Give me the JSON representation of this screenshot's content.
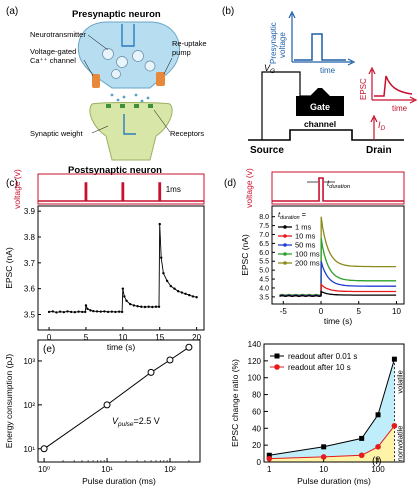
{
  "panels": {
    "a": {
      "letter": "(a)",
      "presynaptic": "Presynaptic neuron",
      "postsynaptic": "Postsynaptic neuron",
      "neurotransmitter": "Neurotransmitter",
      "vg_channel_1": "Voltage-gated",
      "vg_channel_2": "Ca⁺⁺ channel",
      "reuptake_1": "Re-uptake",
      "reuptake_2": "pump",
      "synaptic_weight": "Synaptic weight",
      "receptors": "Receptors"
    },
    "b": {
      "letter": "(b)",
      "pre_voltage_1": "Presynaptic",
      "pre_voltage_2": "voltage",
      "time": "time",
      "vg": "V",
      "vg_sub": "G",
      "epsc": "EPSC",
      "gate": "Gate",
      "channel": "channel",
      "source": "Source",
      "drain": "Drain",
      "id": "I",
      "id_sub": "D"
    },
    "colors": {
      "blue": "#1f5fa8",
      "red": "#c8102e",
      "cyan": "#bfeefa",
      "yellow": "#fff3a8"
    }
  },
  "chart_data": [
    {
      "panel": "c",
      "letter": "(c)",
      "type": "line",
      "top_ylabel": "voltage (v)",
      "pulse_label": "1ms",
      "pulse_times": [
        5,
        10,
        15
      ],
      "ylabel": "EPSC (nA)",
      "xlabel": "time (s)",
      "xlim": [
        -1.5,
        21
      ],
      "ylim": [
        3.44,
        3.92
      ],
      "xticks": [
        0,
        5,
        10,
        15,
        20
      ],
      "yticks": [
        3.5,
        3.6,
        3.7,
        3.8,
        3.9
      ],
      "series": [
        {
          "color": "#000000",
          "x": [
            0,
            0.5,
            1,
            1.5,
            2,
            2.5,
            3,
            3.5,
            4,
            4.5,
            4.9,
            5.0,
            5.2,
            5.6,
            6,
            6.5,
            7,
            7.5,
            8,
            8.5,
            9,
            9.5,
            9.9,
            10.0,
            10.2,
            10.5,
            11,
            11.5,
            12,
            12.5,
            13,
            13.5,
            14,
            14.5,
            14.9,
            15.0,
            15.2,
            15.5,
            16,
            16.5,
            17,
            17.5,
            18,
            18.5,
            19,
            19.5,
            20
          ],
          "y": [
            3.51,
            3.512,
            3.508,
            3.511,
            3.509,
            3.512,
            3.51,
            3.509,
            3.511,
            3.51,
            3.51,
            3.535,
            3.522,
            3.516,
            3.513,
            3.512,
            3.511,
            3.512,
            3.51,
            3.511,
            3.51,
            3.511,
            3.51,
            3.6,
            3.57,
            3.553,
            3.54,
            3.535,
            3.532,
            3.53,
            3.529,
            3.53,
            3.529,
            3.53,
            3.53,
            3.85,
            3.72,
            3.66,
            3.63,
            3.61,
            3.6,
            3.59,
            3.585,
            3.58,
            3.575,
            3.57,
            3.567
          ]
        }
      ]
    },
    {
      "panel": "d",
      "letter": "(d)",
      "type": "line",
      "top_ylabel": "voltage (v)",
      "pulse_label": "t",
      "pulse_label_sub": "duration",
      "legend_title": "t",
      "legend_title_sub": "duration",
      "legend_title_tail": " =",
      "ylabel": "EPSC (nA)",
      "xlabel": "time (s)",
      "xlim": [
        -6.5,
        11
      ],
      "ylim": [
        3.1,
        8.6
      ],
      "xticks": [
        -5,
        0,
        5,
        10
      ],
      "yticks": [
        3.5,
        4.0,
        4.5,
        5.0,
        5.5,
        6.0,
        6.5,
        7.0,
        7.5,
        8.0
      ],
      "series": [
        {
          "name": "1 ms",
          "color": "#000000",
          "peak": 3.8,
          "plateau": 3.6,
          "base": 3.55
        },
        {
          "name": "10 ms",
          "color": "#e41a1c",
          "peak": 4.2,
          "plateau": 3.8,
          "base": 3.55
        },
        {
          "name": "50 ms",
          "color": "#1f3fd0",
          "peak": 5.5,
          "plateau": 4.1,
          "base": 3.58
        },
        {
          "name": "100 ms",
          "color": "#2ca02c",
          "peak": 6.8,
          "plateau": 4.4,
          "base": 3.6
        },
        {
          "name": "200 ms",
          "color": "#8b8b1a",
          "peak": 8.0,
          "plateau": 5.2,
          "base": 3.62
        }
      ]
    },
    {
      "panel": "e",
      "letter": "(e)",
      "type": "line",
      "scale": "log-log",
      "xlabel": "Pulse duration (ms)",
      "ylabel": "Energy consumption (pJ)",
      "annotation": "V",
      "annotation_sub": "pulse",
      "annotation_tail": "=2.5 V",
      "xlim": [
        0.8,
        300
      ],
      "ylim": [
        5,
        3000
      ],
      "xticks": [
        1,
        10,
        100
      ],
      "xtick_labels": [
        "10⁰",
        "10¹",
        "10²"
      ],
      "yticks": [
        10,
        100,
        1000
      ],
      "ytick_labels": [
        "10¹",
        "10²",
        "10³"
      ],
      "series": [
        {
          "color": "#000000",
          "x": [
            1,
            10,
            50,
            100,
            200
          ],
          "y": [
            10,
            100,
            550,
            1050,
            2050
          ]
        }
      ]
    },
    {
      "panel": "f",
      "letter": "(f)",
      "type": "area",
      "scale": "log-x",
      "xlabel": "Pulse duration (ms)",
      "ylabel": "EPSC change ratio (%)",
      "xlim": [
        0.8,
        300
      ],
      "ylim": [
        0,
        140
      ],
      "xticks": [
        1,
        10,
        100
      ],
      "xtick_labels": [
        "1",
        "10",
        "100"
      ],
      "yticks": [
        0,
        20,
        40,
        60,
        80,
        100,
        120,
        140
      ],
      "volatile_label": "volatile",
      "nonvolatile_label": "nonvolatile",
      "series": [
        {
          "name": "readout after 0.01 s",
          "color": "#000000",
          "marker": "square",
          "x": [
            1,
            10,
            50,
            100,
            200
          ],
          "y": [
            8,
            18,
            28,
            56,
            122
          ]
        },
        {
          "name": "readout after 10 s",
          "color": "#e41a1c",
          "marker": "circle",
          "x": [
            1,
            10,
            50,
            100,
            200
          ],
          "y": [
            4,
            6,
            8,
            18,
            43
          ]
        }
      ]
    }
  ]
}
